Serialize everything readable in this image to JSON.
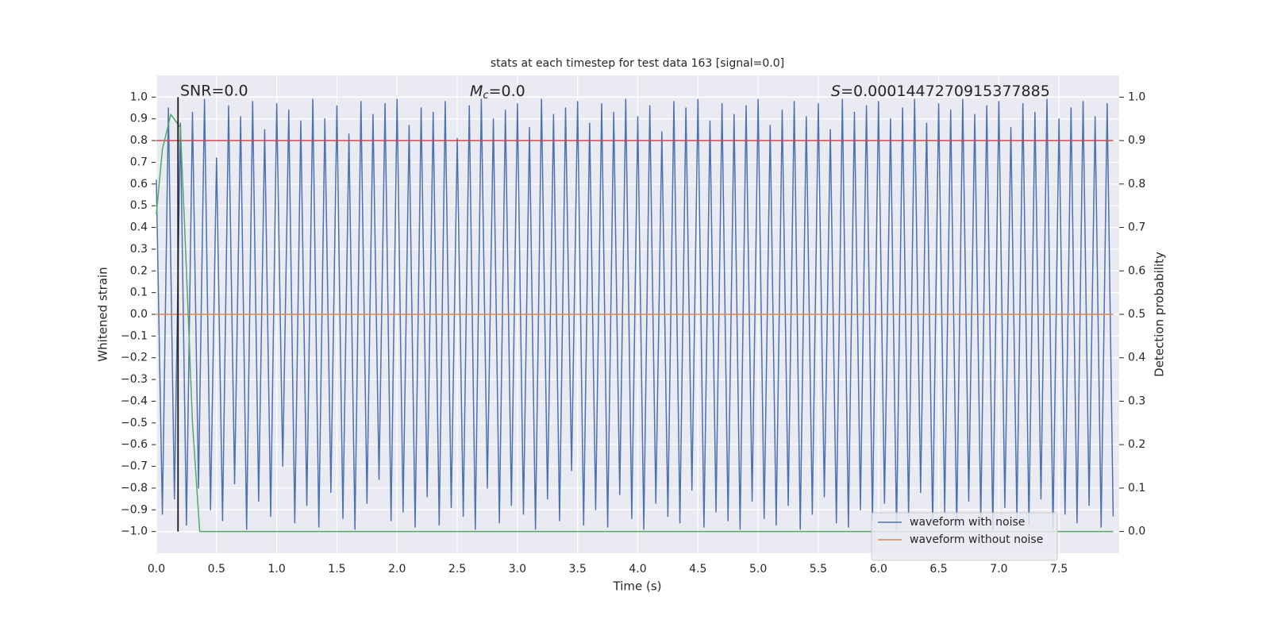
{
  "chart_data": {
    "type": "line",
    "title": "stats at each timestep for test data 163 [signal=0.0]",
    "xlabel": "Time (s)",
    "ylabel": "Whitened strain",
    "y2label": "Detection probability",
    "annotations": [
      "SNR=0.0",
      {
        "italic": "M",
        "sub": "c",
        "text": "=0.0"
      },
      {
        "italic": "S",
        "text": "=0.0001447270915377885"
      }
    ],
    "xlim": [
      0,
      8
    ],
    "ylim": [
      -1.1,
      1.1
    ],
    "y2lim": [
      -0.05,
      1.05
    ],
    "xticks": [
      {
        "value": 0,
        "label": "0.0"
      },
      {
        "value": 0.5,
        "label": "0.5"
      },
      {
        "value": 1,
        "label": "1.0"
      },
      {
        "value": 1.5,
        "label": "1.5"
      },
      {
        "value": 2,
        "label": "2.0"
      },
      {
        "value": 2.5,
        "label": "2.5"
      },
      {
        "value": 3,
        "label": "3.0"
      },
      {
        "value": 3.5,
        "label": "3.5"
      },
      {
        "value": 4,
        "label": "4.0"
      },
      {
        "value": 4.5,
        "label": "4.5"
      },
      {
        "value": 5,
        "label": "5.0"
      },
      {
        "value": 5.5,
        "label": "5.5"
      },
      {
        "value": 6,
        "label": "6.0"
      },
      {
        "value": 6.5,
        "label": "6.5"
      },
      {
        "value": 7,
        "label": "7.0"
      },
      {
        "value": 7.5,
        "label": "7.5"
      }
    ],
    "yticks": [
      {
        "value": 1,
        "label": "1.0"
      },
      {
        "value": 0.9,
        "label": "0.9"
      },
      {
        "value": 0.8,
        "label": "0.8"
      },
      {
        "value": 0.7,
        "label": "0.7"
      },
      {
        "value": 0.6,
        "label": "0.6"
      },
      {
        "value": 0.5,
        "label": "0.5"
      },
      {
        "value": 0.4,
        "label": "0.4"
      },
      {
        "value": 0.3,
        "label": "0.3"
      },
      {
        "value": 0.2,
        "label": "0.2"
      },
      {
        "value": 0.1,
        "label": "0.1"
      },
      {
        "value": 0,
        "label": "0.0"
      },
      {
        "value": -0.1,
        "label": "−0.1"
      },
      {
        "value": -0.2,
        "label": "−0.2"
      },
      {
        "value": -0.3,
        "label": "−0.3"
      },
      {
        "value": -0.4,
        "label": "−0.4"
      },
      {
        "value": -0.5,
        "label": "−0.5"
      },
      {
        "value": -0.6,
        "label": "−0.6"
      },
      {
        "value": -0.7,
        "label": "−0.7"
      },
      {
        "value": -0.8,
        "label": "−0.8"
      },
      {
        "value": -0.9,
        "label": "−0.9"
      },
      {
        "value": -1,
        "label": "−1.0"
      }
    ],
    "y2ticks": [
      {
        "value": 1,
        "label": "1.0"
      },
      {
        "value": 0.9,
        "label": "0.9"
      },
      {
        "value": 0.8,
        "label": "0.8"
      },
      {
        "value": 0.7,
        "label": "0.7"
      },
      {
        "value": 0.6,
        "label": "0.6"
      },
      {
        "value": 0.5,
        "label": "0.5"
      },
      {
        "value": 0.4,
        "label": "0.4"
      },
      {
        "value": 0.3,
        "label": "0.3"
      },
      {
        "value": 0.2,
        "label": "0.2"
      },
      {
        "value": 0.1,
        "label": "0.1"
      },
      {
        "value": 0,
        "label": "0.0"
      }
    ],
    "grid": true,
    "legend": "lower right",
    "vlines": [
      {
        "x": 0.18,
        "ymin": -1,
        "ymax": 1,
        "color": "#1a1a1a"
      }
    ],
    "series": [
      {
        "name": "waveform with noise",
        "color": "#4c72b0",
        "axis": "y",
        "x": [
          0,
          0.05,
          0.1,
          0.15,
          0.2,
          0.25,
          0.3,
          0.35,
          0.4,
          0.45,
          0.5,
          0.55,
          0.6,
          0.65,
          0.7,
          0.75,
          0.8,
          0.85,
          0.9,
          0.95,
          1,
          1.05,
          1.1,
          1.15,
          1.2,
          1.25,
          1.3,
          1.35,
          1.4,
          1.45,
          1.5,
          1.55,
          1.6,
          1.65,
          1.7,
          1.75,
          1.8,
          1.85,
          1.9,
          1.95,
          2,
          2.05,
          2.1,
          2.15,
          2.2,
          2.25,
          2.3,
          2.35,
          2.4,
          2.45,
          2.5,
          2.55,
          2.6,
          2.65,
          2.7,
          2.75,
          2.8,
          2.85,
          2.9,
          2.95,
          3,
          3.05,
          3.1,
          3.15,
          3.2,
          3.25,
          3.3,
          3.35,
          3.4,
          3.45,
          3.5,
          3.55,
          3.6,
          3.65,
          3.7,
          3.75,
          3.8,
          3.85,
          3.9,
          3.95,
          4,
          4.05,
          4.1,
          4.15,
          4.2,
          4.25,
          4.3,
          4.35,
          4.4,
          4.45,
          4.5,
          4.55,
          4.6,
          4.65,
          4.7,
          4.75,
          4.8,
          4.85,
          4.9,
          4.95,
          5,
          5.05,
          5.1,
          5.15,
          5.2,
          5.25,
          5.3,
          5.35,
          5.4,
          5.45,
          5.5,
          5.55,
          5.6,
          5.65,
          5.7,
          5.75,
          5.8,
          5.85,
          5.9,
          5.95,
          6,
          6.05,
          6.1,
          6.15,
          6.2,
          6.25,
          6.3,
          6.35,
          6.4,
          6.45,
          6.5,
          6.55,
          6.6,
          6.65,
          6.7,
          6.75,
          6.8,
          6.85,
          6.9,
          6.95,
          7,
          7.05,
          7.1,
          7.15,
          7.2,
          7.25,
          7.3,
          7.35,
          7.4,
          7.45,
          7.5,
          7.55,
          7.6,
          7.65,
          7.7,
          7.75,
          7.8,
          7.85,
          7.9,
          7.95
        ],
        "values": [
          0.62,
          -0.92,
          0.95,
          -0.85,
          0.88,
          -0.97,
          0.93,
          -0.8,
          0.99,
          -0.9,
          0.72,
          -0.95,
          0.96,
          -0.78,
          0.91,
          -0.99,
          0.98,
          -0.86,
          0.85,
          -0.93,
          0.97,
          -0.7,
          0.94,
          -0.96,
          0.89,
          -0.88,
          0.99,
          -0.98,
          0.9,
          -0.82,
          0.96,
          -0.94,
          0.83,
          -0.99,
          0.98,
          -0.87,
          0.92,
          -0.76,
          0.97,
          -0.95,
          0.99,
          -0.91,
          0.87,
          -0.98,
          0.95,
          -0.84,
          0.93,
          -0.97,
          0.98,
          -0.89,
          0.81,
          -0.93,
          0.96,
          -0.99,
          0.99,
          -0.8,
          0.9,
          -0.96,
          0.94,
          -0.88,
          0.97,
          -0.92,
          0.86,
          -0.99,
          0.99,
          -0.85,
          0.92,
          -0.95,
          0.95,
          -0.72,
          0.98,
          -0.97,
          0.88,
          -0.9,
          0.97,
          -0.98,
          0.93,
          -0.83,
          0.99,
          -0.94,
          0.91,
          -0.99,
          0.96,
          -0.87,
          0.84,
          -0.93,
          0.98,
          -0.96,
          0.95,
          -0.81,
          0.99,
          -0.98,
          0.89,
          -0.91,
          0.97,
          -0.95,
          0.92,
          -0.99,
          0.96,
          -0.86,
          0.99,
          -0.94,
          0.87,
          -0.97,
          0.94,
          -0.88,
          0.98,
          -0.99,
          0.91,
          -0.92,
          0.97,
          -0.84,
          0.85,
          -0.96,
          0.99,
          -0.98,
          0.93,
          -0.9,
          0.96,
          -0.95,
          0.98,
          -0.87,
          0.9,
          -0.99,
          0.95,
          -0.93,
          0.99,
          -0.82,
          0.88,
          -0.97,
          0.97,
          -0.91,
          0.94,
          -0.98,
          0.99,
          -0.86,
          0.92,
          -0.95,
          0.96,
          -0.99,
          0.98,
          -0.89,
          0.86,
          -0.94,
          0.97,
          -0.97,
          0.93,
          -0.85,
          0.99,
          -0.99,
          0.9,
          -0.92,
          0.95,
          -0.96,
          0.98,
          -0.88,
          0.91,
          -0.98,
          0.97,
          -0.93
        ]
      },
      {
        "name": "waveform without noise",
        "color": "#dd8452",
        "axis": "y",
        "x": [
          0,
          7.95
        ],
        "values": [
          0,
          0
        ]
      },
      {
        "color": "#c44e52",
        "axis": "y2",
        "x": [
          0,
          7.95
        ],
        "values": [
          0.9,
          0.9
        ]
      },
      {
        "color": "#55a868",
        "axis": "y2",
        "x": [
          0,
          0.05,
          0.12,
          0.2,
          0.25,
          0.3,
          0.36,
          7.95
        ],
        "values": [
          0.73,
          0.88,
          0.96,
          0.93,
          0.6,
          0.25,
          0,
          0
        ]
      }
    ]
  }
}
